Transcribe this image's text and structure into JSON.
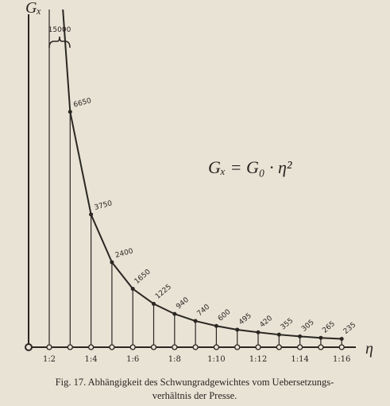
{
  "chart_data": {
    "type": "line",
    "y_label": "Gₓ",
    "x_label": "η",
    "formula": "Gₓ = G₀ · η²",
    "categories": [
      "1:2",
      null,
      "1:4",
      null,
      "1:6",
      null,
      "1:8",
      null,
      "1:10",
      null,
      "1:12",
      null,
      "1:14",
      null,
      "1:16"
    ],
    "values": [
      15000,
      6650,
      3750,
      2400,
      1650,
      1225,
      940,
      740,
      600,
      495,
      420,
      355,
      305,
      265,
      235
    ],
    "value_labels": [
      "15000",
      "6650",
      "3750",
      "2400",
      "1650",
      "1225",
      "940",
      "740",
      "600",
      "495",
      "420",
      "355",
      "305",
      "265",
      "235"
    ],
    "ylim": [
      0,
      8800
    ],
    "color": "#2a2622"
  },
  "caption": [
    "Fig. 17.  Abhängigkeit des Schwungradgewichtes vom Uebersetzungs-",
    "verhältnis der Presse."
  ]
}
